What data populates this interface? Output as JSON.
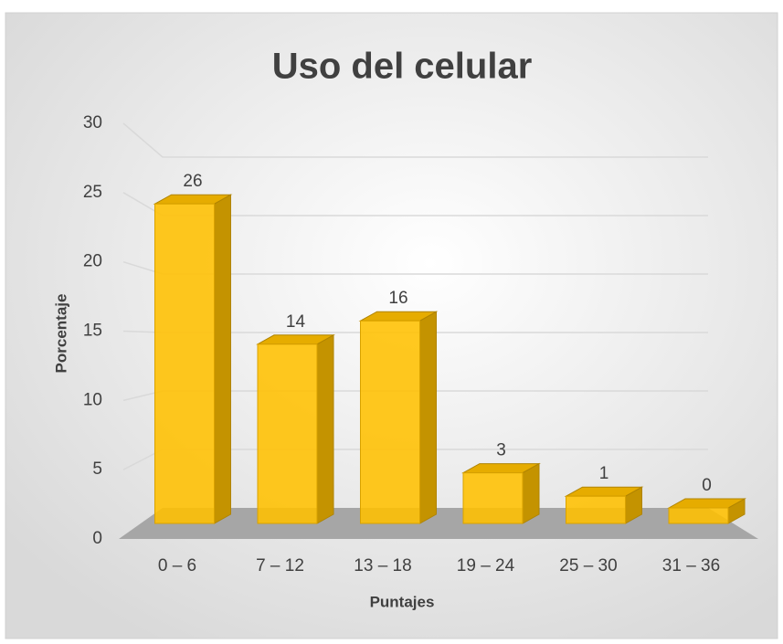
{
  "chart_data": {
    "type": "bar3d",
    "title": "Uso del celular",
    "x_label": "Puntajes",
    "y_label": "Porcentaje",
    "categories": [
      "0 – 6",
      "7 – 12",
      "13 – 18",
      "19 – 24",
      "25 – 30",
      "31 – 36"
    ],
    "values": [
      26,
      14,
      16,
      3,
      1,
      0
    ],
    "color": "#ffc000",
    "ylim": [
      0,
      30
    ],
    "yticks": [
      0,
      5,
      10,
      15,
      20,
      25,
      30
    ],
    "grid": true
  }
}
